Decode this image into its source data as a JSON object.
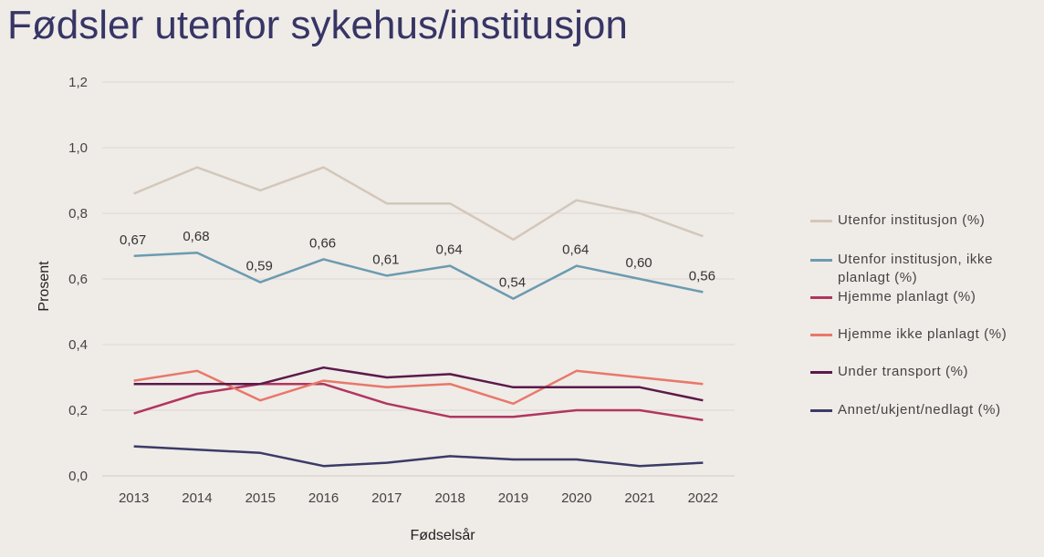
{
  "chart_data": {
    "type": "line",
    "title": "Fødsler utenfor sykehus/institusjon",
    "x_label": "Fødselsår",
    "y_label": "Prosent",
    "categories": [
      "2013",
      "2014",
      "2015",
      "2016",
      "2017",
      "2018",
      "2019",
      "2020",
      "2021",
      "2022"
    ],
    "ylim": [
      0,
      1.2
    ],
    "yticks": [
      {
        "value": 0,
        "label": "0,0"
      },
      {
        "value": 0.2,
        "label": "0,2"
      },
      {
        "value": 0.4,
        "label": "0,4"
      },
      {
        "value": 0.6,
        "label": "0,6"
      },
      {
        "value": 0.8,
        "label": "0,8"
      },
      {
        "value": 1.0,
        "label": "1,0"
      },
      {
        "value": 1.2,
        "label": "1,2"
      }
    ],
    "grid": true,
    "legend": "right",
    "series": [
      {
        "name": "Utenfor institusjon (%)",
        "color": "#d3c7ba",
        "values": [
          0.86,
          0.94,
          0.87,
          0.94,
          0.83,
          0.83,
          0.72,
          0.84,
          0.8,
          0.73
        ]
      },
      {
        "name": "Utenfor institusjon, ikke planlagt (%)",
        "color": "#6b9bb0",
        "values": [
          0.67,
          0.68,
          0.59,
          0.66,
          0.61,
          0.64,
          0.54,
          0.64,
          0.6,
          0.56
        ],
        "value_labels": [
          "0,67",
          "0,68",
          "0,59",
          "0,66",
          "0,61",
          "0,64",
          "0,54",
          "0,64",
          "0,60",
          "0,56"
        ]
      },
      {
        "name": "Hjemme planlagt (%)",
        "color": "#b0365f",
        "values": [
          0.19,
          0.25,
          0.28,
          0.28,
          0.22,
          0.18,
          0.18,
          0.2,
          0.2,
          0.17
        ]
      },
      {
        "name": "Hjemme ikke planlagt (%)",
        "color": "#e8786a",
        "values": [
          0.29,
          0.32,
          0.23,
          0.29,
          0.27,
          0.28,
          0.22,
          0.32,
          0.3,
          0.28
        ]
      },
      {
        "name": "Under transport (%)",
        "color": "#5b1a4a",
        "values": [
          0.28,
          0.28,
          0.28,
          0.33,
          0.3,
          0.31,
          0.27,
          0.27,
          0.27,
          0.23
        ]
      },
      {
        "name": "Annet/ukjent/nedlagt (%)",
        "color": "#3b3b68",
        "values": [
          0.09,
          0.08,
          0.07,
          0.03,
          0.04,
          0.06,
          0.05,
          0.05,
          0.03,
          0.04
        ]
      }
    ]
  }
}
